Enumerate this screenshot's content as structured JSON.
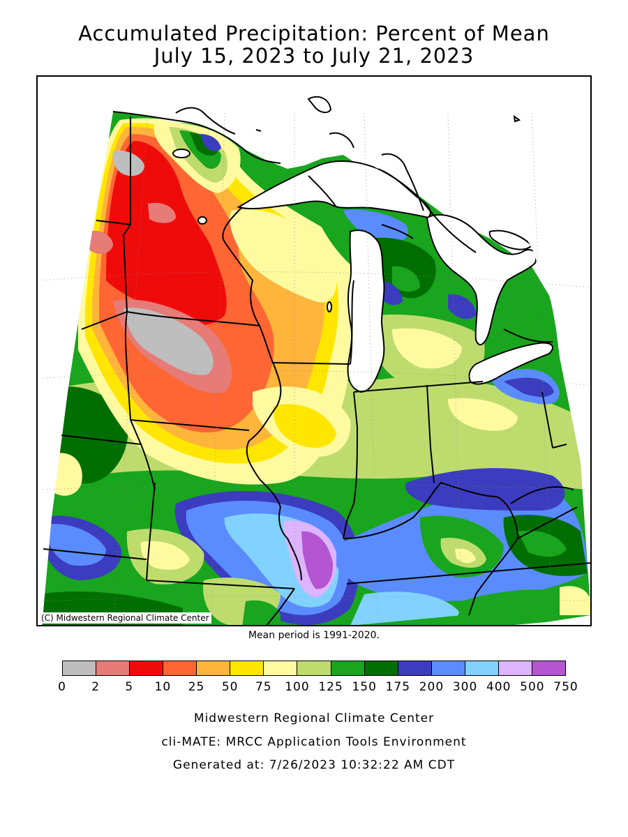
{
  "title_line1": "Accumulated Precipitation: Percent of Mean",
  "title_line2": "July 15, 2023 to July 21, 2023",
  "copyright": "(C) Midwestern Regional Climate Center",
  "mean_period": "Mean period is 1991-2020.",
  "legend": {
    "colors": [
      "#bebebe",
      "#e67b78",
      "#f00b0b",
      "#ff6633",
      "#ffb43c",
      "#ffe600",
      "#fffaa0",
      "#bedc6e",
      "#19a51e",
      "#006e00",
      "#3c3cbe",
      "#5a8cff",
      "#82d2ff",
      "#dcb4ff",
      "#b455d2"
    ],
    "labels": [
      "0",
      "2",
      "5",
      "10",
      "25",
      "50",
      "75",
      "100",
      "125",
      "150",
      "175",
      "200",
      "300",
      "400",
      "500",
      "750"
    ]
  },
  "footer_line1": "Midwestern Regional Climate Center",
  "footer_line2": "cli-MATE: MRCC Application Tools Environment",
  "footer_line3": "Generated at: 7/26/2023 10:32:22 AM CDT"
}
